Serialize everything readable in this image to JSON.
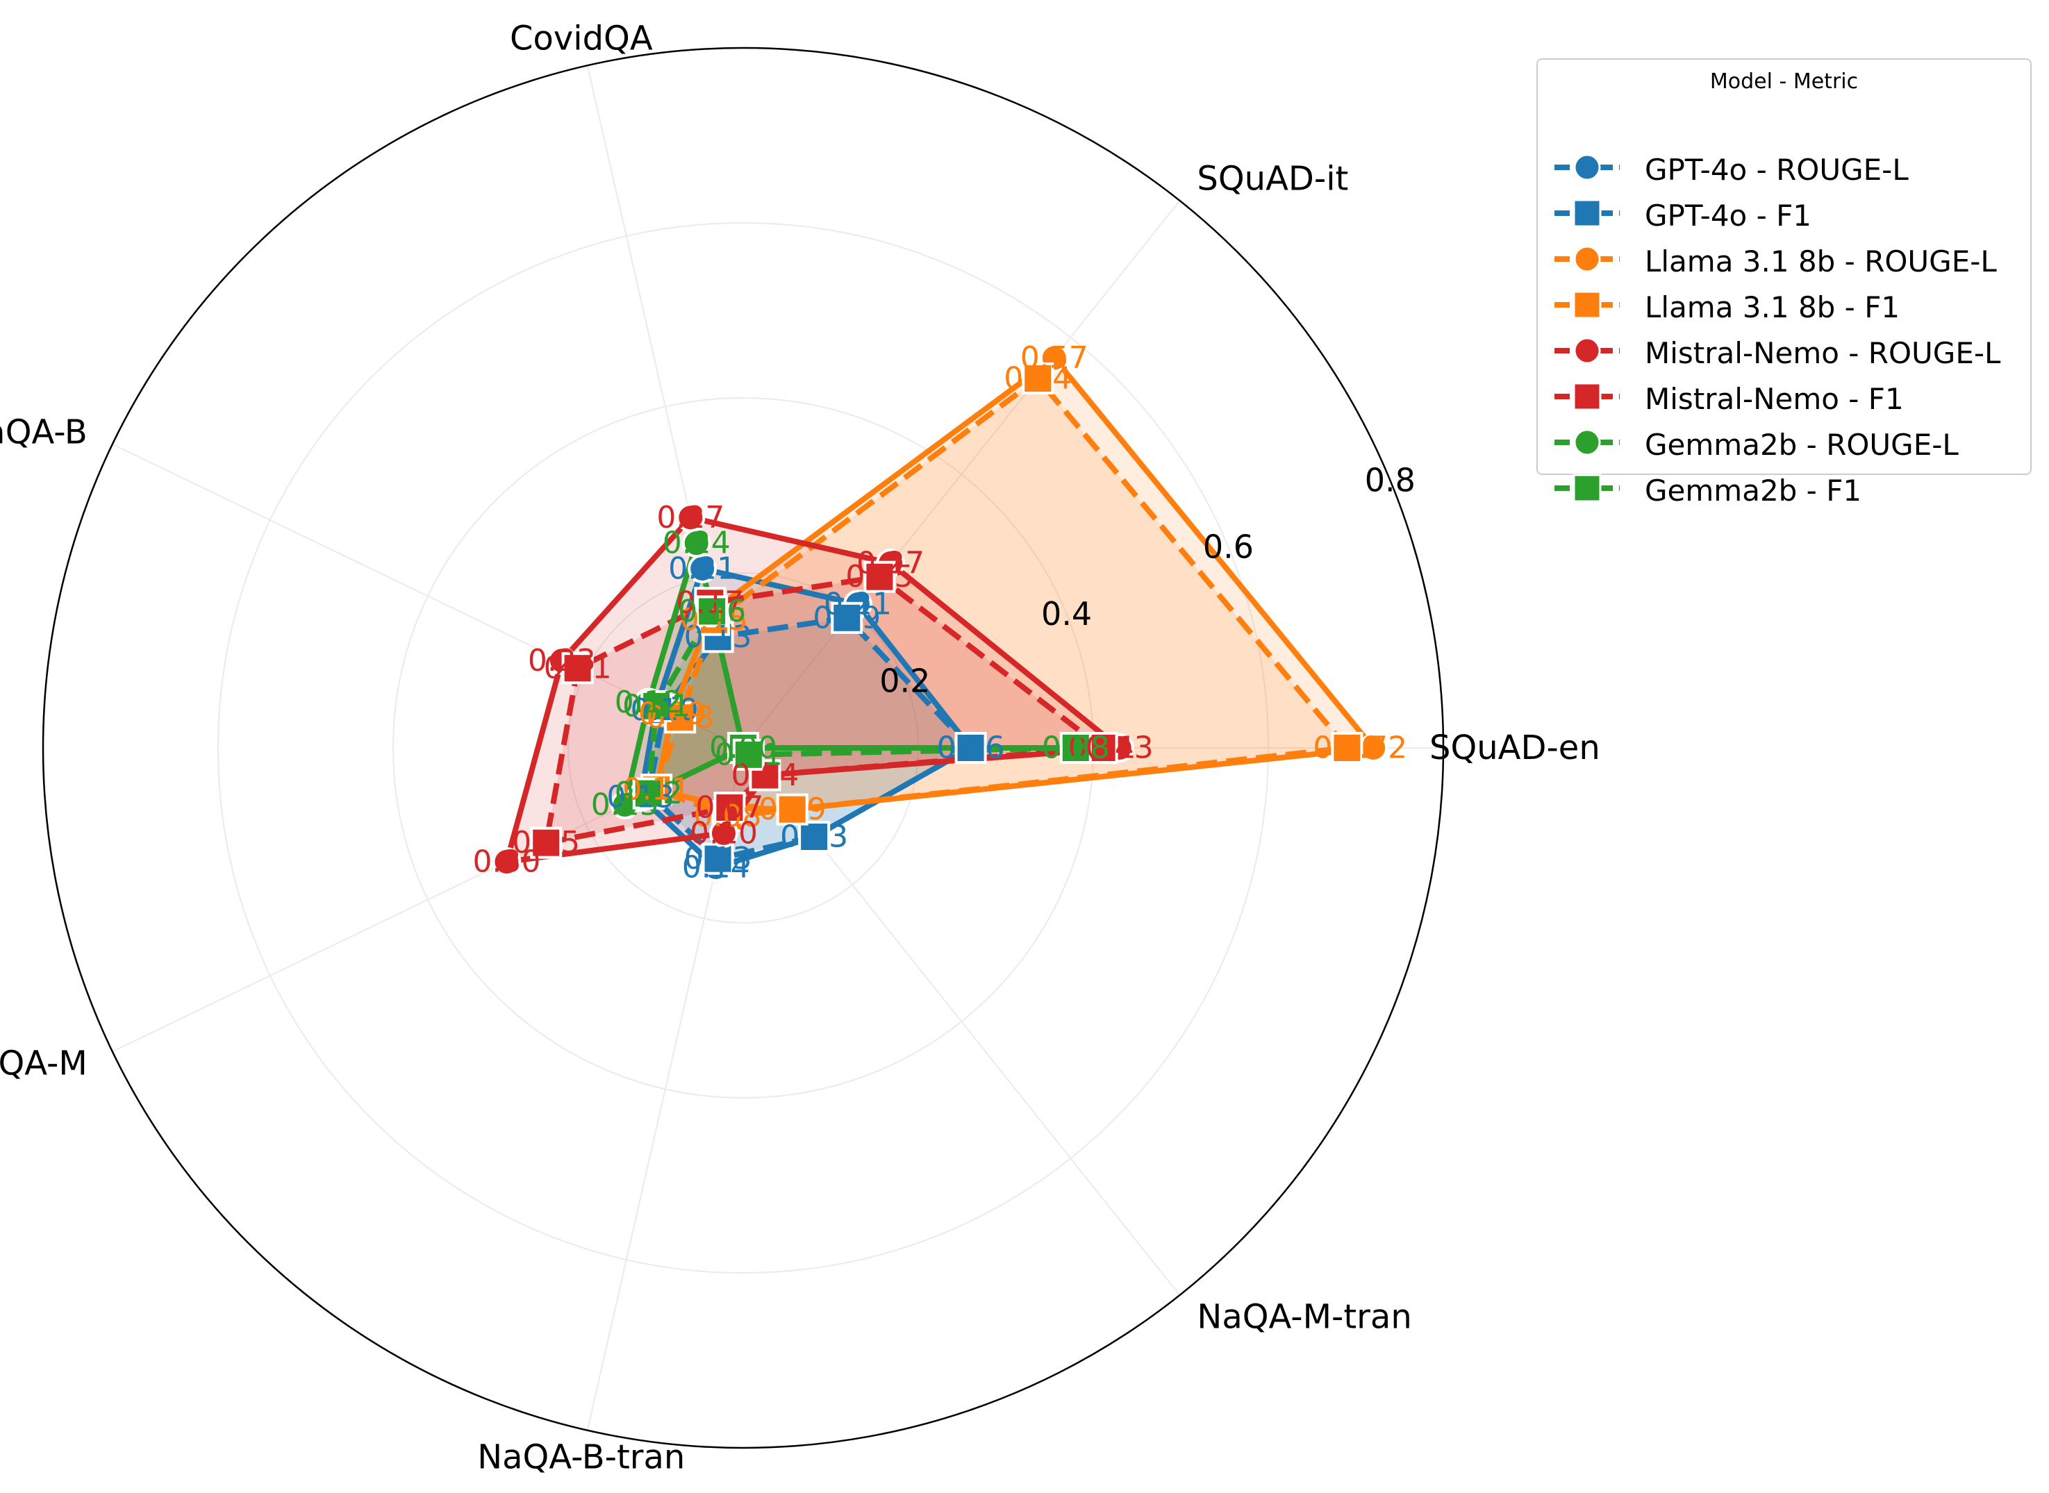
{
  "chart_data": {
    "type": "radar",
    "axes": [
      "SQuAD-en",
      "SQuAD-it",
      "CovidQA",
      "NaQA-B",
      "NaQA-M",
      "NaQA-B-tran",
      "NaQA-M-tran"
    ],
    "rmax": 0.8,
    "r_ticks": [
      "0.2",
      "0.4",
      "0.6",
      "0.8"
    ],
    "grid": true,
    "legend": {
      "title": "Model - Metric",
      "position": "top-right outside"
    },
    "series": [
      {
        "name": "GPT-4o - ROUGE-L",
        "model": "GPT-4o",
        "metric": "ROUGE-L",
        "color": "#1f77b4",
        "marker": "circle",
        "linestyle": "solid",
        "values": [
          0.26,
          0.21,
          0.21,
          0.11,
          0.13,
          0.14,
          0.13
        ],
        "labels": [
          "0.26",
          "0.21",
          "0.21",
          "0.11",
          "0.13",
          "0.14",
          "0.13"
        ]
      },
      {
        "name": "GPT-4o - F1",
        "model": "GPT-4o",
        "metric": "F1",
        "color": "#1f77b4",
        "marker": "square",
        "linestyle": "dashed",
        "values": [
          0.26,
          0.19,
          0.13,
          0.1,
          0.12,
          0.13,
          0.13
        ],
        "labels": [
          "0.26",
          "0.19",
          "0.13",
          "0.10",
          "0.12",
          "0.13",
          "0.13"
        ]
      },
      {
        "name": "Llama 3.1 8b - ROUGE-L",
        "model": "Llama 3.1 8b",
        "metric": "ROUGE-L",
        "color": "#ff7f0e",
        "marker": "circle",
        "linestyle": "solid",
        "values": [
          0.72,
          0.57,
          0.16,
          0.09,
          0.11,
          0.07,
          0.09
        ],
        "labels": [
          "0.72",
          "0.57",
          "0.16",
          "0.09",
          "0.11",
          "0.07",
          "0.09"
        ]
      },
      {
        "name": "Llama 3.1 8b - F1",
        "model": "Llama 3.1 8b",
        "metric": "F1",
        "color": "#ff7f0e",
        "marker": "square",
        "linestyle": "dashed",
        "values": [
          0.69,
          0.54,
          0.15,
          0.08,
          0.11,
          0.08,
          0.09
        ],
        "labels": [
          "0.69",
          "0.54",
          "0.15",
          "0.08",
          "0.11",
          "0.08",
          "0.09"
        ]
      },
      {
        "name": "Mistral-Nemo - ROUGE-L",
        "model": "Mistral-Nemo",
        "metric": "ROUGE-L",
        "color": "#d62728",
        "marker": "circle",
        "linestyle": "solid",
        "values": [
          0.43,
          0.27,
          0.27,
          0.23,
          0.3,
          0.1,
          0.04
        ],
        "labels": [
          "0.43",
          "0.27",
          "0.27",
          "0.23",
          "0.30",
          "0.10",
          "0.04"
        ]
      },
      {
        "name": "Mistral-Nemo - F1",
        "model": "Mistral-Nemo",
        "metric": "F1",
        "color": "#d62728",
        "marker": "square",
        "linestyle": "dashed",
        "values": [
          0.41,
          0.25,
          0.17,
          0.21,
          0.25,
          0.07,
          0.04
        ],
        "labels": [
          "0.41",
          "0.25",
          "0.17",
          "0.21",
          "0.25",
          "0.07",
          "0.04"
        ]
      },
      {
        "name": "Gemma2b - ROUGE-L",
        "model": "Gemma2b",
        "metric": "ROUGE-L",
        "color": "#2ca02c",
        "marker": "circle",
        "linestyle": "solid",
        "values": [
          0.38,
          0.0,
          0.24,
          0.12,
          0.15,
          0.0,
          0.0
        ],
        "labels": [
          "0.38",
          "",
          "0.24",
          "0.12",
          "0.15",
          "",
          "0.00"
        ]
      },
      {
        "name": "Gemma2b - F1",
        "model": "Gemma2b",
        "metric": "F1",
        "color": "#2ca02c",
        "marker": "square",
        "linestyle": "dashed",
        "values": [
          0.38,
          0.0,
          0.16,
          0.11,
          0.12,
          0.0,
          0.01
        ],
        "labels": [
          "0.38",
          "",
          "0.16",
          "0.11",
          "0.12",
          "",
          "0.01"
        ]
      }
    ]
  }
}
